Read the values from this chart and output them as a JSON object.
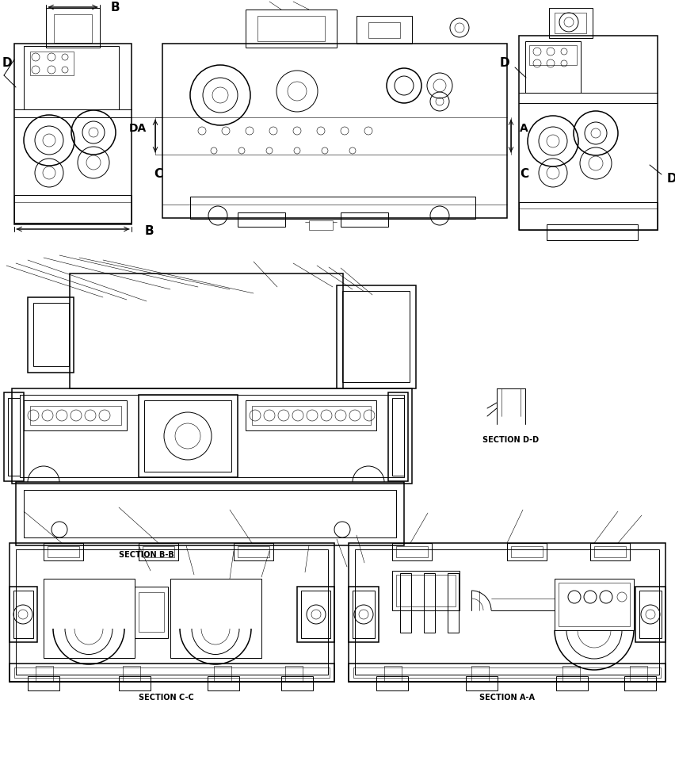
{
  "background_color": "#ffffff",
  "line_color": "#000000",
  "figure_width": 8.53,
  "figure_height": 9.65,
  "dpi": 100,
  "section_labels": {
    "BB": "SECTION B-B",
    "DD": "SECTION D-D",
    "CC": "SECTION C-C",
    "AA": "SECTION A-A"
  },
  "lw_thin": 0.4,
  "lw_med": 0.7,
  "lw_thick": 1.1,
  "lw_xthick": 1.6
}
